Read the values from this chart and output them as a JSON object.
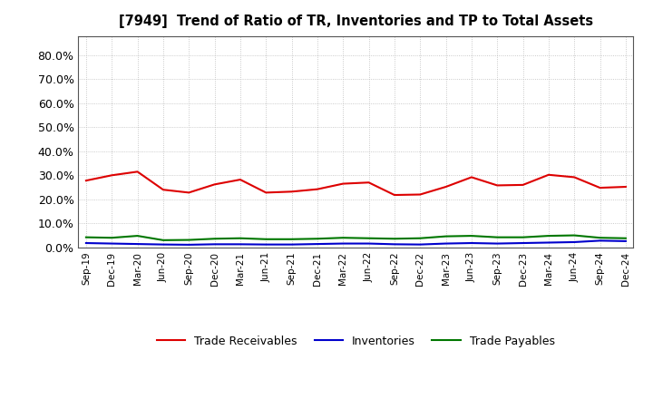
{
  "title": "[7949]  Trend of Ratio of TR, Inventories and TP to Total Assets",
  "x_labels": [
    "Sep-19",
    "Dec-19",
    "Mar-20",
    "Jun-20",
    "Sep-20",
    "Dec-20",
    "Mar-21",
    "Jun-21",
    "Sep-21",
    "Dec-21",
    "Mar-22",
    "Jun-22",
    "Sep-22",
    "Dec-22",
    "Mar-23",
    "Jun-23",
    "Sep-23",
    "Dec-23",
    "Mar-24",
    "Jun-24",
    "Sep-24",
    "Dec-24"
  ],
  "trade_receivables": [
    0.278,
    0.3,
    0.315,
    0.24,
    0.228,
    0.262,
    0.282,
    0.228,
    0.232,
    0.242,
    0.265,
    0.27,
    0.218,
    0.22,
    0.252,
    0.292,
    0.258,
    0.26,
    0.302,
    0.292,
    0.248,
    0.252
  ],
  "inventories": [
    0.018,
    0.016,
    0.014,
    0.012,
    0.011,
    0.013,
    0.013,
    0.012,
    0.012,
    0.014,
    0.016,
    0.016,
    0.013,
    0.012,
    0.016,
    0.018,
    0.016,
    0.018,
    0.02,
    0.022,
    0.028,
    0.026
  ],
  "trade_payables": [
    0.042,
    0.04,
    0.048,
    0.03,
    0.031,
    0.036,
    0.038,
    0.034,
    0.034,
    0.036,
    0.04,
    0.038,
    0.036,
    0.038,
    0.046,
    0.048,
    0.042,
    0.042,
    0.048,
    0.05,
    0.04,
    0.038
  ],
  "tr_color": "#dd0000",
  "inv_color": "#0000cc",
  "tp_color": "#007700",
  "ylim": [
    0.0,
    0.88
  ],
  "yticks": [
    0.0,
    0.1,
    0.2,
    0.3,
    0.4,
    0.5,
    0.6,
    0.7,
    0.8
  ],
  "background_color": "#ffffff",
  "grid_color": "#bbbbbb"
}
